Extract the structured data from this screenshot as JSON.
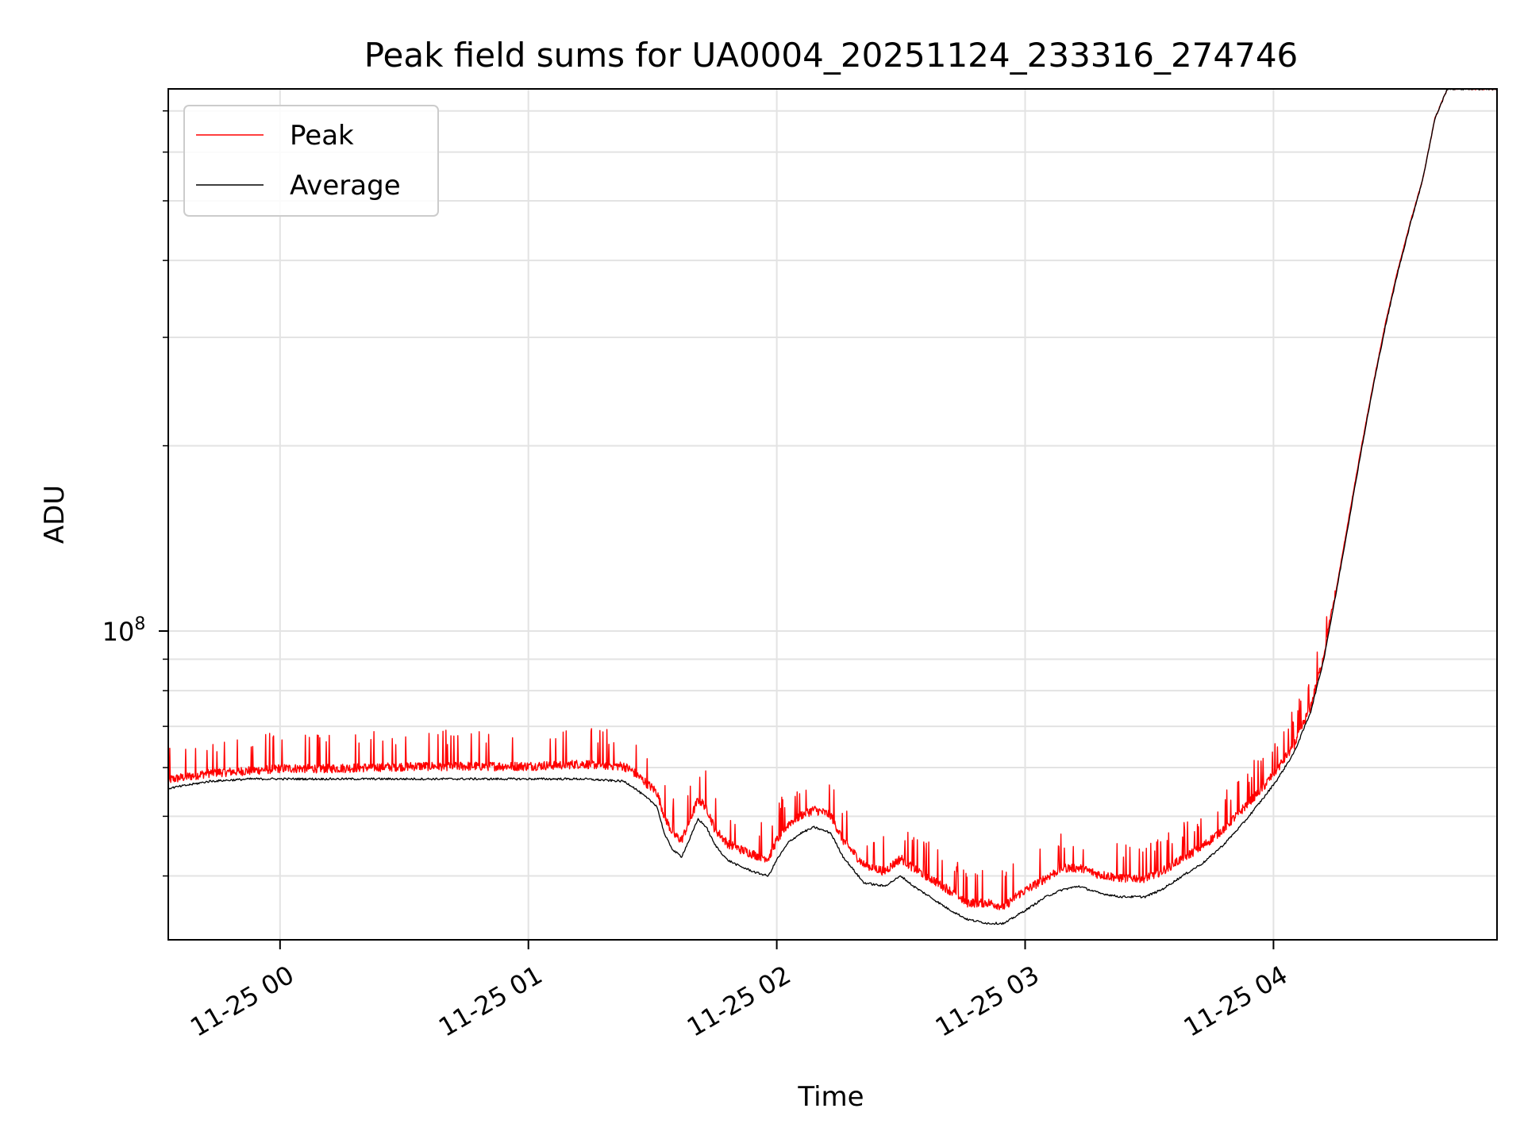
{
  "chart_data": {
    "type": "line",
    "title": "Peak field sums for UA0004_20251124_233316_274746",
    "xlabel": "Time",
    "ylabel": "ADU",
    "yscale": "log",
    "grid": true,
    "legend_location": "upper-left",
    "x_unit": "minutes since 11-24 23:33",
    "xlim": [
      0,
      321
    ],
    "ylim": [
      31500000,
      760000000
    ],
    "x_ticks": [
      {
        "x": 27,
        "label": "11-25 00"
      },
      {
        "x": 87,
        "label": "11-25 01"
      },
      {
        "x": 147,
        "label": "11-25 02"
      },
      {
        "x": 207,
        "label": "11-25 03"
      },
      {
        "x": 267,
        "label": "11-25 04"
      }
    ],
    "y_major_ticks": [
      {
        "y": 100000000,
        "base": "10",
        "exp": "8"
      }
    ],
    "y_minor_ticks": [
      40000000,
      50000000,
      60000000,
      70000000,
      80000000,
      90000000,
      200000000,
      300000000,
      400000000,
      500000000,
      600000000,
      700000000
    ],
    "series": [
      {
        "name": "Peak",
        "color": "#ff0000",
        "noise": true,
        "x": [
          0,
          10,
          20,
          27,
          40,
          60,
          80,
          87,
          100,
          110,
          112,
          118,
          120,
          122,
          124,
          126,
          128,
          130,
          132,
          135,
          138,
          142,
          145,
          147,
          150,
          153,
          156,
          160,
          163,
          168,
          173,
          177,
          180,
          184,
          188,
          193,
          198,
          202,
          205,
          208,
          212,
          216,
          220,
          225,
          230,
          236,
          240,
          245,
          250,
          255,
          260,
          265,
          268,
          272,
          276,
          279,
          282,
          285,
          288,
          291,
          294,
          297,
          300,
          303,
          306,
          309,
          310,
          312,
          321
        ],
        "y": [
          57000000,
          58500000,
          59000000,
          59500000,
          59500000,
          60000000,
          60000000,
          60000000,
          60500000,
          60000000,
          59000000,
          54500000,
          49500000,
          46500000,
          45500000,
          49000000,
          53000000,
          51500000,
          47500000,
          45000000,
          44000000,
          43000000,
          42500000,
          45500000,
          48500000,
          50000000,
          51000000,
          50000000,
          45500000,
          41500000,
          40500000,
          42500000,
          41000000,
          39500000,
          38000000,
          36000000,
          36000000,
          35500000,
          37000000,
          38000000,
          39500000,
          41000000,
          41000000,
          40000000,
          39500000,
          39500000,
          40500000,
          42500000,
          44500000,
          47500000,
          51500000,
          56000000,
          59500000,
          65000000,
          75000000,
          90000000,
          115000000,
          150000000,
          195000000,
          250000000,
          315000000,
          385000000,
          460000000,
          540000000,
          680000000,
          760000000,
          760000000,
          760000000,
          760000000
        ]
      },
      {
        "name": "Average",
        "color": "#000000",
        "noise": false,
        "x": [
          0,
          10,
          20,
          27,
          40,
          60,
          80,
          87,
          100,
          110,
          112,
          118,
          120,
          122,
          124,
          126,
          128,
          130,
          132,
          135,
          138,
          142,
          145,
          147,
          150,
          153,
          156,
          160,
          163,
          168,
          173,
          177,
          180,
          184,
          188,
          193,
          198,
          202,
          205,
          208,
          212,
          216,
          220,
          225,
          230,
          236,
          240,
          245,
          250,
          255,
          260,
          265,
          268,
          272,
          276,
          279,
          282,
          285,
          288,
          291,
          294,
          297,
          300,
          303,
          306,
          309,
          310,
          312,
          321
        ],
        "y": [
          55500000,
          57000000,
          57500000,
          57500000,
          57500000,
          57500000,
          57500000,
          57500000,
          57500000,
          57000000,
          56000000,
          52000000,
          46500000,
          44000000,
          43000000,
          46000000,
          49500000,
          48000000,
          45000000,
          42500000,
          41500000,
          40500000,
          40000000,
          42500000,
          45500000,
          47000000,
          48000000,
          47000000,
          43000000,
          39000000,
          38500000,
          40000000,
          38500000,
          37000000,
          35500000,
          34000000,
          33500000,
          33500000,
          34500000,
          35500000,
          37000000,
          38000000,
          38500000,
          37500000,
          37000000,
          37000000,
          38000000,
          40000000,
          42000000,
          45000000,
          49000000,
          54000000,
          57500000,
          63500000,
          74000000,
          89000000,
          114000000,
          148000000,
          193000000,
          248000000,
          312000000,
          382000000,
          457000000,
          540000000,
          680000000,
          760000000,
          760000000,
          760000000,
          760000000
        ]
      }
    ]
  }
}
